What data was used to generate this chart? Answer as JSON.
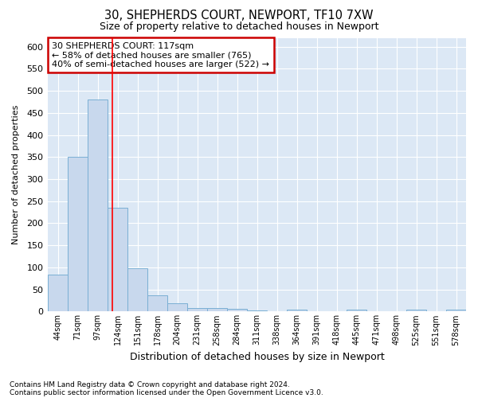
{
  "title1": "30, SHEPHERDS COURT, NEWPORT, TF10 7XW",
  "title2": "Size of property relative to detached houses in Newport",
  "xlabel": "Distribution of detached houses by size in Newport",
  "ylabel": "Number of detached properties",
  "categories": [
    "44sqm",
    "71sqm",
    "97sqm",
    "124sqm",
    "151sqm",
    "178sqm",
    "204sqm",
    "231sqm",
    "258sqm",
    "284sqm",
    "311sqm",
    "338sqm",
    "364sqm",
    "391sqm",
    "418sqm",
    "445sqm",
    "471sqm",
    "498sqm",
    "525sqm",
    "551sqm",
    "578sqm"
  ],
  "values": [
    84,
    350,
    480,
    235,
    98,
    37,
    18,
    8,
    8,
    7,
    2,
    0,
    5,
    0,
    0,
    5,
    0,
    0,
    5,
    0,
    5
  ],
  "bar_color": "#c8d8ed",
  "bar_edge_color": "#7aafd4",
  "ylim": [
    0,
    620
  ],
  "yticks": [
    0,
    50,
    100,
    150,
    200,
    250,
    300,
    350,
    400,
    450,
    500,
    550,
    600
  ],
  "red_line_x": 2.74,
  "annotation_title": "30 SHEPHERDS COURT: 117sqm",
  "annotation_line1": "← 58% of detached houses are smaller (765)",
  "annotation_line2": "40% of semi-detached houses are larger (522) →",
  "annotation_box_color": "#ffffff",
  "annotation_box_edge": "#cc0000",
  "footnote1": "Contains HM Land Registry data © Crown copyright and database right 2024.",
  "footnote2": "Contains public sector information licensed under the Open Government Licence v3.0.",
  "background_color": "#ffffff",
  "plot_bg_color": "#dce8f5",
  "grid_color": "#ffffff"
}
